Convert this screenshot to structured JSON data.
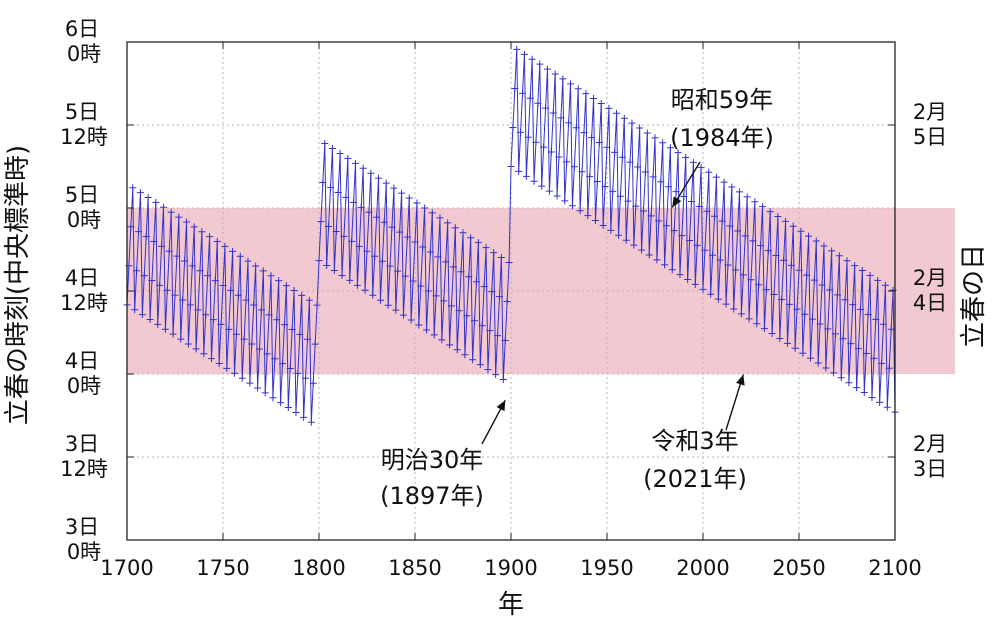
{
  "chart_data": {
    "type": "line",
    "title": "",
    "xlabel": "年",
    "ylabel": "立春の時刻(中央標準時)",
    "y2label": "立春の日",
    "xlim": [
      1700,
      2100
    ],
    "ylim_hours": [
      72,
      144
    ],
    "x_ticks": [
      1700,
      1750,
      1800,
      1850,
      1900,
      1950,
      2000,
      2050,
      2100
    ],
    "y_ticks": [
      {
        "hours": 72,
        "day": "3日",
        "time": "0時"
      },
      {
        "hours": 84,
        "day": "3日",
        "time": "12時"
      },
      {
        "hours": 96,
        "day": "4日",
        "time": "0時"
      },
      {
        "hours": 108,
        "day": "4日",
        "time": "12時"
      },
      {
        "hours": 120,
        "day": "5日",
        "time": "0時"
      },
      {
        "hours": 132,
        "day": "5日",
        "time": "12時"
      },
      {
        "hours": 144,
        "day": "6日",
        "time": "0時"
      }
    ],
    "y2_ticks": [
      {
        "hours": 84,
        "month": "2月",
        "day": "3日"
      },
      {
        "hours": 108,
        "month": "2月",
        "day": "4日"
      },
      {
        "hours": 132,
        "month": "2月",
        "day": "5日"
      }
    ],
    "band": {
      "from_hours": 96,
      "to_hours": 120,
      "color": "#f2c8d1"
    },
    "series": [
      {
        "name": "立春の時刻",
        "color": "#3333cc",
        "marker": "+",
        "x_range": [
          1700,
          2100
        ],
        "segments": [
          {
            "from_year": 1700,
            "to_year": 1799,
            "start_hours": 106.0,
            "slope_hours_per_year": -0.1768
          },
          {
            "from_year": 1800,
            "to_year": 1899,
            "start_hours": 112.4,
            "slope_hours_per_year": -0.1792
          },
          {
            "from_year": 1900,
            "to_year": 2100,
            "start_hours": 126.0,
            "slope_hours_per_year": -0.1776
          }
        ]
      }
    ],
    "annotations": [
      {
        "line1": "昭和59年",
        "line2": "(1984年)",
        "x": 1984,
        "hours": 120.1
      },
      {
        "line1": "明治30年",
        "line2": "(1897年)",
        "x": 1897,
        "hours": 92.2
      },
      {
        "line1": "令和3年",
        "line2": "(2021年)",
        "x": 2021,
        "hours": 95.9
      }
    ]
  }
}
